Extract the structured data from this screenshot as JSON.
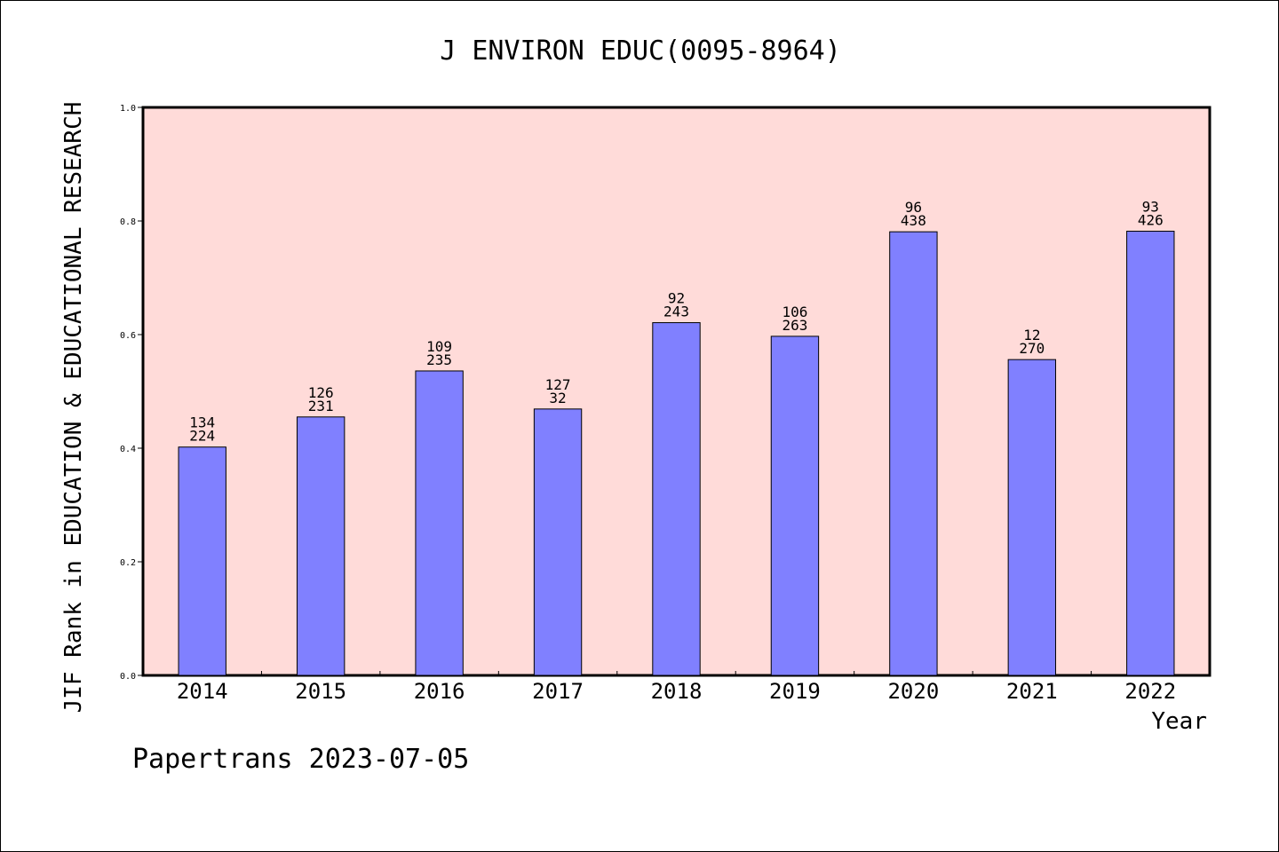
{
  "chart_data": {
    "type": "bar",
    "title": "J ENVIRON EDUC(0095-8964)",
    "xlabel": "Year",
    "ylabel": "JIF Rank in EDUCATION & EDUCATIONAL RESEARCH",
    "categories": [
      "2014",
      "2015",
      "2016",
      "2017",
      "2018",
      "2019",
      "2020",
      "2021",
      "2022"
    ],
    "values": [
      0.402,
      0.455,
      0.536,
      0.469,
      0.621,
      0.597,
      0.781,
      0.556,
      0.782
    ],
    "bar_labels_top": [
      "134",
      "126",
      "109",
      "127",
      "92",
      "106",
      "96",
      "12",
      "93"
    ],
    "bar_labels_bottom": [
      "224",
      "231",
      "235",
      "32",
      "243",
      "263",
      "438",
      "270",
      "426"
    ],
    "ylim": [
      0,
      1.0
    ],
    "yticks": [
      "0.0",
      "0.2",
      "0.4",
      "0.6",
      "0.8",
      "1.0"
    ],
    "grid": false,
    "colors": {
      "plot_background": "#ffdbd9",
      "bar_fill": "#8080ff",
      "bar_stroke": "#000000"
    }
  },
  "footer": {
    "credit": "Papertrans 2023-07-05"
  }
}
